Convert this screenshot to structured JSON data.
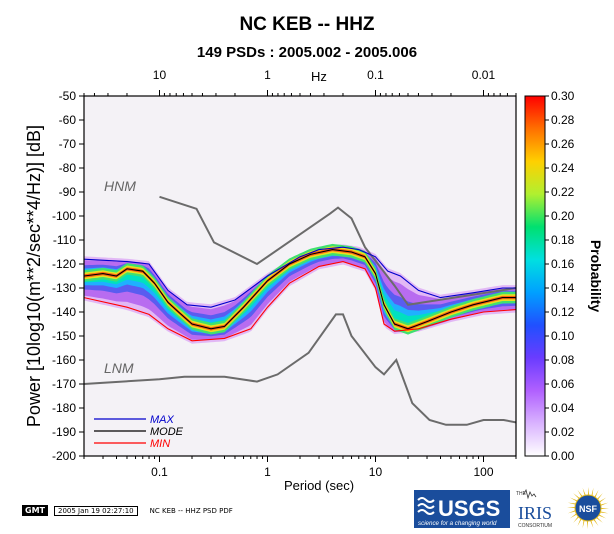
{
  "chart_data": {
    "type": "heatmap",
    "title": "NC KEB -- HHZ",
    "subtitle": "149 PSDs : 2005.002 - 2005.006",
    "xlabel": "Period (sec)",
    "ylabel": "Power [10log10(m**2/sec**4/Hz)] [dB]",
    "top_axis_label": "Hz",
    "x_scale": "log",
    "xlim": [
      0.02,
      200
    ],
    "ylim": [
      -200,
      -50
    ],
    "x_ticks": [
      "0.1",
      "1",
      "10",
      "100"
    ],
    "top_ticks": [
      "10",
      "1",
      "0.1",
      "0.01"
    ],
    "y_ticks": [
      "-50",
      "-60",
      "-70",
      "-80",
      "-90",
      "-100",
      "-110",
      "-120",
      "-130",
      "-140",
      "-150",
      "-160",
      "-170",
      "-180",
      "-190",
      "-200"
    ],
    "colorbar": {
      "label": "Probability",
      "range": [
        0,
        0.3
      ],
      "ticks": [
        "0.30",
        "0.28",
        "0.26",
        "0.24",
        "0.22",
        "0.20",
        "0.18",
        "0.16",
        "0.14",
        "0.12",
        "0.10",
        "0.08",
        "0.06",
        "0.04",
        "0.02",
        "0.00"
      ],
      "colors": [
        "#ffffff",
        "#d9b3ff",
        "#b060ff",
        "#6a3cff",
        "#2050ff",
        "#00a0ff",
        "#00e0e0",
        "#00e070",
        "#b0f030",
        "#ffd000",
        "#ff7000",
        "#ff0000"
      ]
    },
    "reference_curves": [
      {
        "name": "HNM",
        "points": [
          [
            0.1,
            -92
          ],
          [
            0.22,
            -97
          ],
          [
            0.32,
            -111
          ],
          [
            0.8,
            -120
          ],
          [
            3.8,
            -99
          ],
          [
            4.5,
            -96.5
          ],
          [
            6,
            -101
          ],
          [
            8,
            -113
          ],
          [
            15,
            -129
          ],
          [
            20,
            -137
          ],
          [
            200,
            -130
          ]
        ]
      },
      {
        "name": "LNM",
        "points": [
          [
            0.02,
            -170
          ],
          [
            0.1,
            -168
          ],
          [
            0.17,
            -167
          ],
          [
            0.4,
            -167
          ],
          [
            0.8,
            -169
          ],
          [
            1.24,
            -166
          ],
          [
            2.4,
            -157
          ],
          [
            4.3,
            -141
          ],
          [
            5,
            -141
          ],
          [
            6,
            -150
          ],
          [
            10,
            -163
          ],
          [
            12,
            -166
          ],
          [
            15.6,
            -160
          ],
          [
            21.9,
            -178
          ],
          [
            31.6,
            -185
          ],
          [
            45,
            -187
          ],
          [
            70,
            -187
          ],
          [
            100,
            -185
          ],
          [
            154,
            -185
          ],
          [
            200,
            -186
          ]
        ]
      }
    ],
    "series": [
      {
        "name": "MAX",
        "color": "#0000cc",
        "points": [
          [
            0.02,
            -118
          ],
          [
            0.05,
            -119
          ],
          [
            0.08,
            -120
          ],
          [
            0.12,
            -131
          ],
          [
            0.18,
            -137
          ],
          [
            0.3,
            -138
          ],
          [
            0.5,
            -135
          ],
          [
            1,
            -125
          ],
          [
            2,
            -117
          ],
          [
            3,
            -114
          ],
          [
            5,
            -113
          ],
          [
            7,
            -114
          ],
          [
            10,
            -117
          ],
          [
            13,
            -123
          ],
          [
            17,
            -125
          ],
          [
            25,
            -131
          ],
          [
            40,
            -134
          ],
          [
            80,
            -132
          ],
          [
            150,
            -130
          ],
          [
            200,
            -130
          ]
        ]
      },
      {
        "name": "MODE",
        "color": "#000000",
        "points": [
          [
            0.02,
            -125
          ],
          [
            0.03,
            -124
          ],
          [
            0.04,
            -125
          ],
          [
            0.05,
            -122
          ],
          [
            0.07,
            -123
          ],
          [
            0.09,
            -128
          ],
          [
            0.12,
            -136
          ],
          [
            0.15,
            -140
          ],
          [
            0.2,
            -145
          ],
          [
            0.3,
            -147
          ],
          [
            0.4,
            -146
          ],
          [
            0.6,
            -138
          ],
          [
            1,
            -127
          ],
          [
            1.6,
            -120
          ],
          [
            2.5,
            -116
          ],
          [
            4,
            -114
          ],
          [
            6,
            -115
          ],
          [
            8,
            -117
          ],
          [
            10,
            -124
          ],
          [
            12,
            -137
          ],
          [
            15,
            -145
          ],
          [
            20,
            -147
          ],
          [
            30,
            -144
          ],
          [
            50,
            -140
          ],
          [
            80,
            -137
          ],
          [
            150,
            -134
          ],
          [
            200,
            -134
          ]
        ]
      },
      {
        "name": "MIN",
        "color": "#ff0000",
        "points": [
          [
            0.02,
            -134
          ],
          [
            0.05,
            -138
          ],
          [
            0.08,
            -141
          ],
          [
            0.12,
            -147
          ],
          [
            0.2,
            -152
          ],
          [
            0.4,
            -151
          ],
          [
            0.7,
            -147
          ],
          [
            1,
            -138
          ],
          [
            1.6,
            -128
          ],
          [
            3,
            -121
          ],
          [
            5,
            -119
          ],
          [
            8,
            -122
          ],
          [
            10,
            -130
          ],
          [
            12,
            -145
          ],
          [
            15,
            -148
          ],
          [
            25,
            -147
          ],
          [
            50,
            -143
          ],
          [
            100,
            -140
          ],
          [
            200,
            -139
          ]
        ]
      }
    ]
  },
  "footer": {
    "gmt": "GMT",
    "timestamp": "2005 Jan 19 02:27:10",
    "caption": "NC KEB -- HHZ PSD PDF"
  },
  "logos": {
    "usgs": "USGS",
    "usgs_tagline": "science for a changing world",
    "iris": "IRIS",
    "iris_small": "CONSORTIUM",
    "iris_top": "THE",
    "nsf": "NSF"
  }
}
